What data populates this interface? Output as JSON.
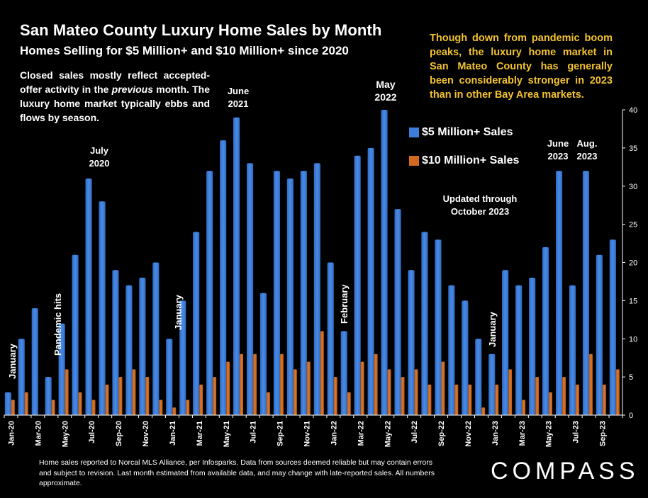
{
  "title": "San Mateo County Luxury Home Sales by Month",
  "subtitle": "Homes Selling for $5 Million+ and $10 Million+ since 2020",
  "note_left_1": "Closed sales mostly reflect accepted-offer activity in the ",
  "note_left_em": "previous",
  "note_left_2": " month. The luxury home market typically ebbs and flows by season.",
  "note_right": "Though down from pandemic boom peaks, the luxury home market in San Mateo County has generally been considerably stronger in 2023 than in other Bay Area markets.",
  "updated_note": "Updated through October 2023",
  "footer": "Home sales reported to Norcal MLS Alliance, per Infosparks. Data from sources deemed reliable but may contain errors and subject to revision.  Last month estimated from available data, and may change with late-reported sales. All numbers approximate.",
  "logo": "COMPASS",
  "annotations": {
    "jan_2020": "January",
    "pandemic": "Pandemic hits",
    "july_2020_a": "July",
    "july_2020_b": "2020",
    "jan_2021": "January",
    "june_2021_a": "June",
    "june_2021_b": "2021",
    "february": "February",
    "may_2022_a": "May",
    "may_2022_b": "2022",
    "jan_2023": "January",
    "june_2023_a": "June",
    "june_2023_b": "2023",
    "aug_2023_a": "Aug.",
    "aug_2023_b": "2023"
  },
  "colors": {
    "blue": "#3b7dd8",
    "orange": "#d2691e",
    "axis": "#ffffff",
    "highlight": "#f2c230"
  },
  "chart_data": {
    "type": "bar",
    "categories": [
      "Jan-20",
      "Feb-20",
      "Mar-20",
      "Apr-20",
      "May-20",
      "Jun-20",
      "Jul-20",
      "Aug-20",
      "Sep-20",
      "Oct-20",
      "Nov-20",
      "Dec-20",
      "Jan-21",
      "Feb-21",
      "Mar-21",
      "Apr-21",
      "May-21",
      "Jun-21",
      "Jul-21",
      "Aug-21",
      "Sep-21",
      "Oct-21",
      "Nov-21",
      "Dec-21",
      "Jan-22",
      "Feb-22",
      "Mar-22",
      "Apr-22",
      "May-22",
      "Jun-22",
      "Jul-22",
      "Aug-22",
      "Sep-22",
      "Oct-22",
      "Nov-22",
      "Dec-22",
      "Jan-23",
      "Feb-23",
      "Mar-23",
      "Apr-23",
      "May-23",
      "Jun-23",
      "Jul-23",
      "Aug-23",
      "Sep-23",
      "Oct-23"
    ],
    "tick_labels": [
      "Jan-20",
      "Mar-20",
      "May-20",
      "Jul-20",
      "Sep-20",
      "Nov-20",
      "Jan-21",
      "Mar-21",
      "May-21",
      "Jul-21",
      "Sep-21",
      "Nov-21",
      "Jan-22",
      "Mar-22",
      "May-22",
      "Jul-22",
      "Sep-22",
      "Nov-22",
      "Jan-23",
      "Mar-23",
      "May-23",
      "Jul-23",
      "Sep-23"
    ],
    "series": [
      {
        "name": "$5 Million+ Sales",
        "color": "#3b7dd8",
        "values": [
          3,
          10,
          14,
          5,
          12,
          21,
          31,
          28,
          19,
          17,
          18,
          20,
          10,
          15,
          24,
          32,
          36,
          39,
          33,
          16,
          32,
          31,
          32,
          33,
          20,
          11,
          34,
          35,
          40,
          27,
          19,
          24,
          23,
          17,
          15,
          10,
          8,
          19,
          17,
          18,
          22,
          32,
          17,
          32,
          21,
          23
        ]
      },
      {
        "name": "$10 Million+ Sales",
        "color": "#d2691e",
        "values": [
          2,
          3,
          0,
          2,
          6,
          3,
          2,
          4,
          5,
          6,
          5,
          2,
          1,
          2,
          4,
          5,
          7,
          8,
          8,
          3,
          8,
          6,
          7,
          11,
          5,
          3,
          7,
          8,
          6,
          5,
          6,
          4,
          7,
          4,
          4,
          1,
          4,
          6,
          2,
          5,
          3,
          5,
          4,
          8,
          4,
          6
        ]
      }
    ],
    "ylim": [
      0,
      40
    ],
    "yticks": [
      0,
      5,
      10,
      15,
      20,
      25,
      30,
      35,
      40
    ],
    "legend_position": "upper-right"
  }
}
